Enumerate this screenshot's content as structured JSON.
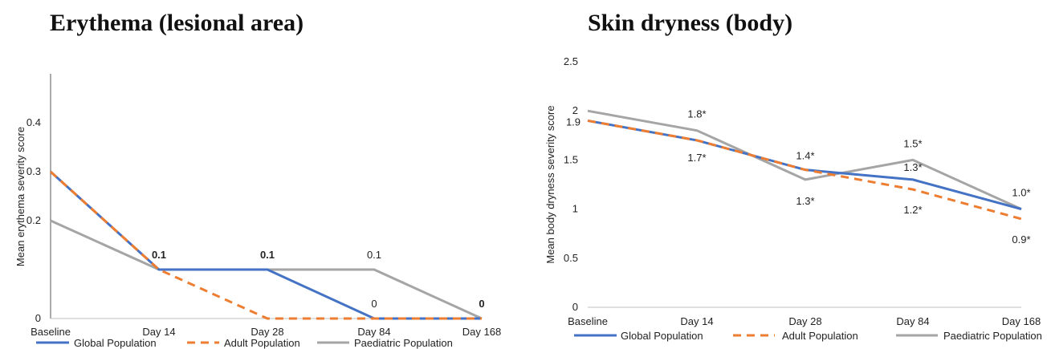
{
  "chart_data": [
    {
      "type": "line",
      "title": "Erythema (lesional area)",
      "ylabel": "Mean erythema severity  score",
      "xlabel": "",
      "categories": [
        "Baseline",
        "Day 14",
        "Day 28",
        "Day 84",
        "Day 168"
      ],
      "ylim": [
        0,
        0.5
      ],
      "yticks": [
        "0",
        "0.2",
        "0.3",
        "0.4"
      ],
      "y_axis_line": true,
      "series": [
        {
          "name": "Global Population",
          "color": "#4472C4",
          "dash": "solid",
          "values": [
            0.3,
            0.1,
            0.1,
            0,
            0
          ]
        },
        {
          "name": "Adult Population",
          "color": "#ED7D31",
          "dash": "dashed",
          "values": [
            0.3,
            0.1,
            0,
            0,
            0
          ]
        },
        {
          "name": "Paediatric Population",
          "color": "#A5A5A5",
          "dash": "solid",
          "values": [
            0.2,
            0.1,
            0.1,
            0.1,
            0
          ]
        }
      ],
      "data_labels": [
        {
          "text": "0.1",
          "series": 1,
          "point": 1,
          "bold": true
        },
        {
          "text": "0.1",
          "series": 2,
          "point": 2,
          "bold": true
        },
        {
          "text": "0.1",
          "series": 2,
          "point": 3,
          "bold": false
        },
        {
          "text": "0",
          "series": 0,
          "point": 3,
          "bold": false
        },
        {
          "text": "0",
          "series": 0,
          "point": 4,
          "bold": true
        }
      ],
      "legend": "bottom"
    },
    {
      "type": "line",
      "title": "Skin dryness (body)",
      "ylabel": "Mean  body dryness severity score",
      "xlabel": "",
      "categories": [
        "Baseline",
        "Day 14",
        "Day 28",
        "Day 84",
        "Day 168"
      ],
      "ylim": [
        0,
        2.5
      ],
      "yticks": [
        "0",
        "0.5",
        "1",
        "1.5",
        "2",
        "2.5"
      ],
      "y_axis_line": false,
      "series": [
        {
          "name": "Global Population",
          "color": "#4472C4",
          "dash": "solid",
          "values": [
            1.9,
            1.7,
            1.4,
            1.3,
            1.0
          ]
        },
        {
          "name": "Adult Population",
          "color": "#ED7D31",
          "dash": "dashed",
          "values": [
            1.9,
            1.7,
            1.4,
            1.2,
            0.9
          ]
        },
        {
          "name": "Paediatric Population",
          "color": "#A5A5A5",
          "dash": "solid",
          "values": [
            2.0,
            1.8,
            1.3,
            1.5,
            1.0
          ]
        }
      ],
      "data_labels": [
        {
          "text": "1.9",
          "series": 0,
          "point": 0,
          "bold": false
        },
        {
          "text": "1.8*",
          "series": 2,
          "point": 1,
          "bold": false
        },
        {
          "text": "1.7*",
          "series": 0,
          "point": 1,
          "bold": false
        },
        {
          "text": "1.4*",
          "series": 0,
          "point": 2,
          "bold": false
        },
        {
          "text": "1.3*",
          "series": 2,
          "point": 2,
          "bold": false
        },
        {
          "text": "1.5*",
          "series": 2,
          "point": 3,
          "bold": false
        },
        {
          "text": "1.3*",
          "series": 0,
          "point": 3,
          "bold": false
        },
        {
          "text": "1.2*",
          "series": 1,
          "point": 3,
          "bold": false
        },
        {
          "text": "1.0*",
          "series": 0,
          "point": 4,
          "bold": false
        },
        {
          "text": "0.9*",
          "series": 1,
          "point": 4,
          "bold": false
        }
      ],
      "legend": "bottom"
    }
  ]
}
